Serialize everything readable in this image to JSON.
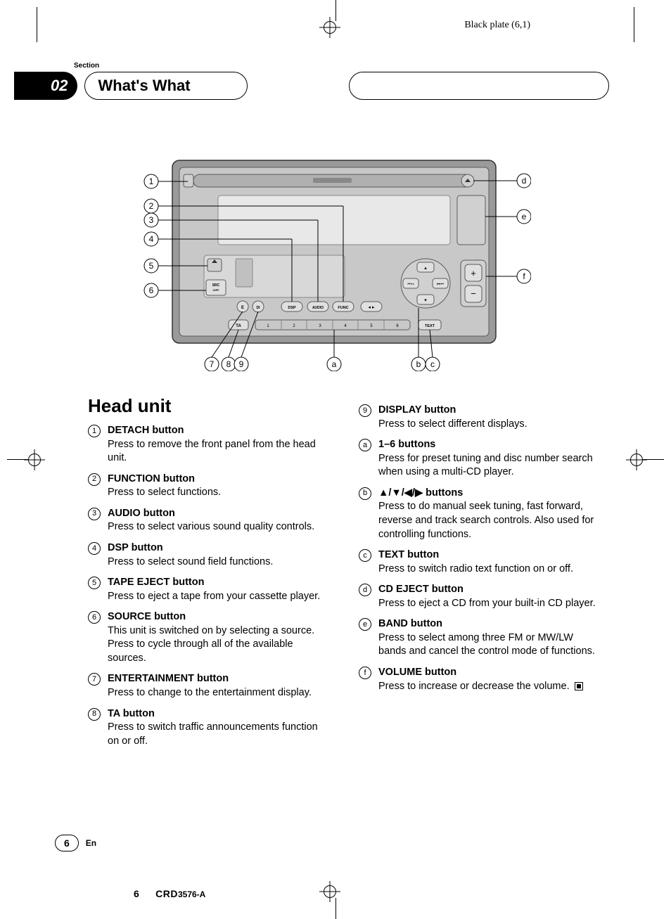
{
  "header": {
    "plate_info": "Black plate (6,1)",
    "section_label": "Section",
    "section_number": "02",
    "section_title": "What's What"
  },
  "diagram": {
    "callouts_left": [
      "1",
      "2",
      "3",
      "4",
      "5",
      "6"
    ],
    "callouts_bottom": [
      "7",
      "8",
      "9",
      "a",
      "b",
      "c"
    ],
    "callouts_right": [
      "d",
      "e",
      "f"
    ],
    "buttons": {
      "src": "SRC",
      "off": "/OFF",
      "e": "E",
      "di": "DI",
      "dsp": "DSP",
      "audio": "AUDIO",
      "func": "FUNC",
      "ta": "TA",
      "text": "TEXT",
      "presets": [
        "1",
        "2",
        "3",
        "4",
        "5",
        "6"
      ]
    },
    "colors": {
      "faceplate_outer": "#9a9a9a",
      "faceplate_inner": "#c8c8c8",
      "display": "#e8e8e8",
      "button_fill": "#d0d0d0",
      "border": "#5a5a5a"
    }
  },
  "content": {
    "heading": "Head unit",
    "left_items": [
      {
        "n": "1",
        "title": "DETACH button",
        "desc": "Press to remove the front panel from the head unit."
      },
      {
        "n": "2",
        "title": "FUNCTION button",
        "desc": "Press to select functions."
      },
      {
        "n": "3",
        "title": "AUDIO button",
        "desc": "Press to select various sound quality controls."
      },
      {
        "n": "4",
        "title": "DSP button",
        "desc": "Press to select sound field functions."
      },
      {
        "n": "5",
        "title": "TAPE EJECT button",
        "desc": "Press to eject a tape from your cassette player."
      },
      {
        "n": "6",
        "title": "SOURCE button",
        "desc": "This unit is switched on by selecting a source. Press to cycle through all of the available sources."
      },
      {
        "n": "7",
        "title": "ENTERTAINMENT button",
        "desc": "Press to change to the entertainment display."
      },
      {
        "n": "8",
        "title": "TA button",
        "desc": "Press to switch traffic announcements function on or off."
      }
    ],
    "right_items": [
      {
        "n": "9",
        "title": "DISPLAY button",
        "desc": "Press to select different displays."
      },
      {
        "n": "a",
        "title": "1–6 buttons",
        "desc": "Press for preset tuning and disc number search when using a multi-CD player."
      },
      {
        "n": "b",
        "title": "▲/▼/◀/▶ buttons",
        "desc": "Press to do manual seek tuning, fast forward, reverse and track search controls. Also used for controlling functions."
      },
      {
        "n": "c",
        "title": "TEXT button",
        "desc": "Press to switch radio text function on or off."
      },
      {
        "n": "d",
        "title": "CD EJECT button",
        "desc": "Press to eject a CD from your built-in CD player."
      },
      {
        "n": "e",
        "title": "BAND button",
        "desc": "Press to select among three FM or MW/LW bands and cancel the control mode of functions."
      },
      {
        "n": "f",
        "title": "VOLUME button",
        "desc": "Press to increase or decrease the volume."
      }
    ]
  },
  "footer": {
    "page": "6",
    "lang": "En",
    "bottom_page": "6",
    "model_prefix": "CRD",
    "model_suffix": "3576-A"
  }
}
